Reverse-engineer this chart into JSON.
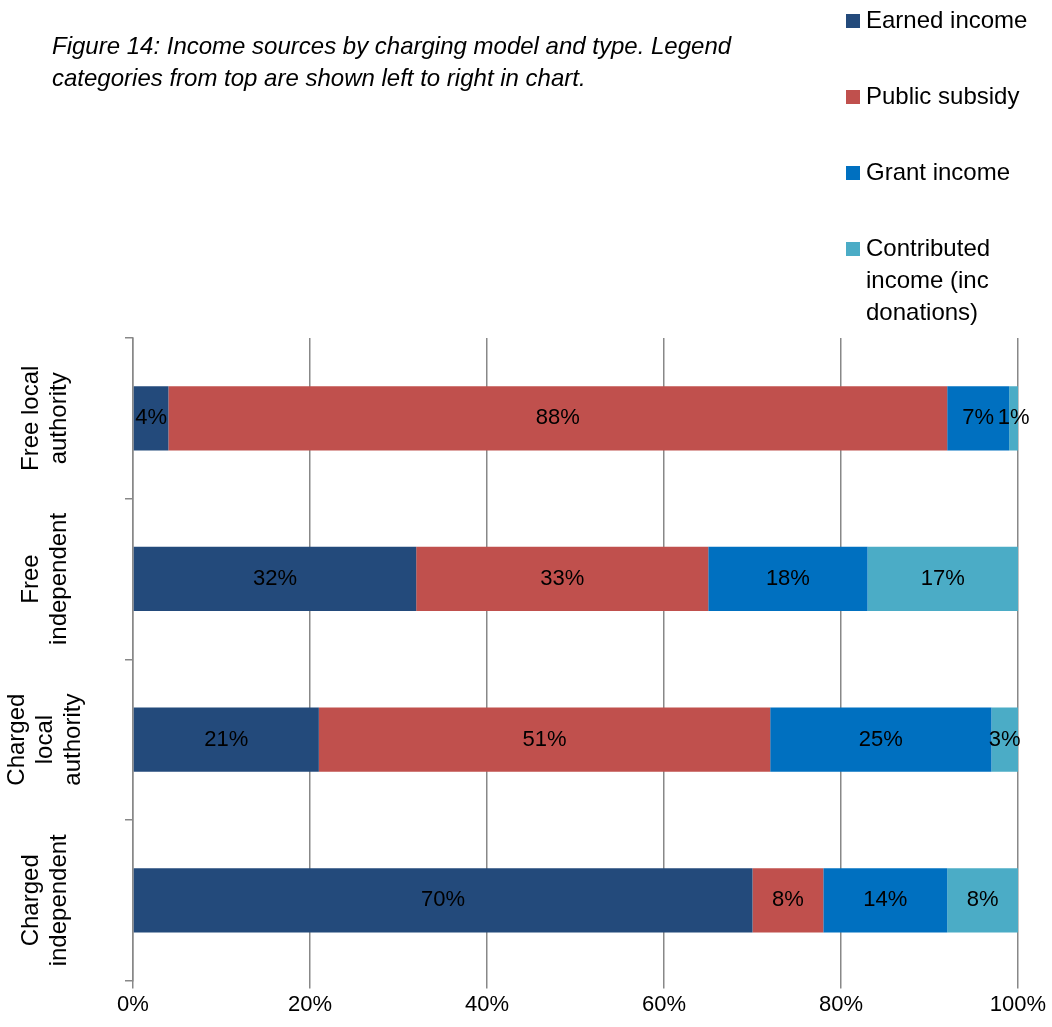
{
  "chart_data": {
    "type": "bar",
    "orientation": "horizontal",
    "stacked": true,
    "title": "Figure 14: Income sources by charging model and type. Legend categories from top are shown left to right in chart.",
    "categories": [
      "Free local authority",
      "Free independent",
      "Charged local authority",
      "Charged independent"
    ],
    "series": [
      {
        "name": "Earned income",
        "color": "#234a7b",
        "values": [
          4,
          32,
          21,
          70
        ],
        "value_labels": [
          "4%",
          "32%",
          "21%",
          "70%"
        ]
      },
      {
        "name": "Public subsidy",
        "color": "#c0504d",
        "values": [
          88,
          33,
          51,
          8
        ],
        "value_labels": [
          "88%",
          "33%",
          "51%",
          "8%"
        ]
      },
      {
        "name": "Grant income",
        "color": "#0070c0",
        "values": [
          7,
          18,
          25,
          14
        ],
        "value_labels": [
          "7%",
          "18%",
          "25%",
          "14%"
        ]
      },
      {
        "name": "Contributed income (inc donations)",
        "color": "#4bacc6",
        "values": [
          1,
          17,
          3,
          8
        ],
        "value_labels": [
          "1%",
          "17%",
          "3%",
          "8%"
        ]
      }
    ],
    "xlim": [
      0,
      100
    ],
    "xticks": [
      {
        "value": 0,
        "label": "0%"
      },
      {
        "value": 20,
        "label": "20%"
      },
      {
        "value": 40,
        "label": "40%"
      },
      {
        "value": 60,
        "label": "60%"
      },
      {
        "value": 80,
        "label": "80%"
      },
      {
        "value": 100,
        "label": "100%"
      }
    ],
    "grid": "x",
    "legend": "top right"
  }
}
